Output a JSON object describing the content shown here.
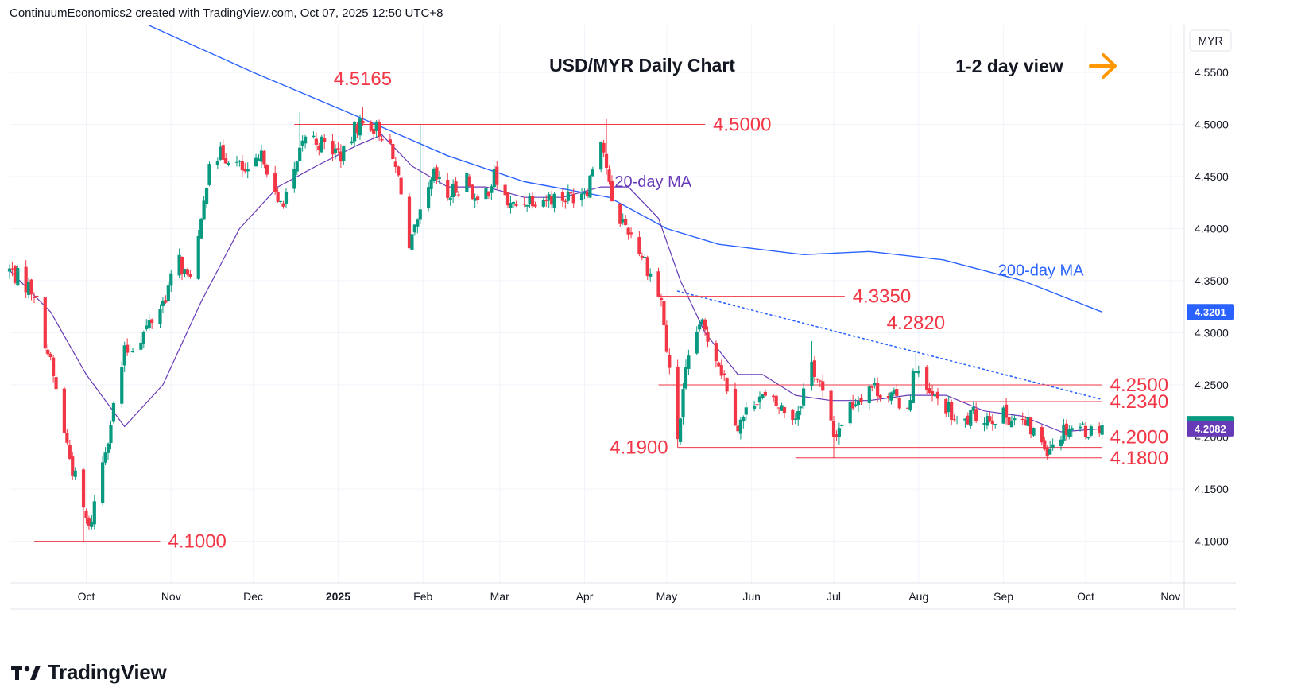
{
  "header": {
    "attribution": "ContinuumEconomics2 created with TradingView.com, Oct 07, 2025 12:50 UTC+8"
  },
  "brand": {
    "logo_text": "TradingView"
  },
  "colors": {
    "candle_up": "#089981",
    "candle_down": "#f23645",
    "ma20": "#673ab7",
    "ma200": "#2962ff",
    "level_line": "#f23645",
    "trendline": "#2962ff",
    "arrow": "#ff9800",
    "price_tag_blue": "#2962ff",
    "price_tag_purple": "#673ab7"
  },
  "chart_data": {
    "type": "candlestick",
    "title": "USD/MYR Daily Chart",
    "view_label": "1-2 day view",
    "currency": "MYR",
    "ylim": [
      4.06,
      4.595
    ],
    "y_ticks": [
      "4.5500",
      "4.5000",
      "4.4500",
      "4.4000",
      "4.3500",
      "4.3000",
      "4.2500",
      "4.2000",
      "4.1500",
      "4.1000"
    ],
    "x_ticks": [
      {
        "label": "Oct",
        "date": "2024-10-01"
      },
      {
        "label": "Nov",
        "date": "2024-11-01"
      },
      {
        "label": "Dec",
        "date": "2024-12-01"
      },
      {
        "label": "2025",
        "date": "2025-01-01",
        "bold": true
      },
      {
        "label": "Feb",
        "date": "2025-02-01"
      },
      {
        "label": "Mar",
        "date": "2025-03-01"
      },
      {
        "label": "Apr",
        "date": "2025-04-01"
      },
      {
        "label": "May",
        "date": "2025-05-01"
      },
      {
        "label": "Jun",
        "date": "2025-06-01"
      },
      {
        "label": "Jul",
        "date": "2025-07-01"
      },
      {
        "label": "Aug",
        "date": "2025-08-01"
      },
      {
        "label": "Sep",
        "date": "2025-09-01"
      },
      {
        "label": "Oct",
        "date": "2025-10-01"
      },
      {
        "label": "Nov",
        "date": "2025-11-01"
      }
    ],
    "date_range": [
      "2024-09-03",
      "2025-11-06"
    ],
    "price_points": [
      [
        "2024-09-03",
        4.36
      ],
      [
        "2024-09-12",
        4.34
      ],
      [
        "2024-09-18",
        4.27
      ],
      [
        "2024-09-25",
        4.18
      ],
      [
        "2024-09-30",
        4.13
      ],
      [
        "2024-10-02",
        4.11
      ],
      [
        "2024-10-08",
        4.19
      ],
      [
        "2024-10-15",
        4.28
      ],
      [
        "2024-10-22",
        4.3
      ],
      [
        "2024-10-29",
        4.33
      ],
      [
        "2024-11-04",
        4.37
      ],
      [
        "2024-11-07",
        4.35
      ],
      [
        "2024-11-12",
        4.4
      ],
      [
        "2024-11-15",
        4.47
      ],
      [
        "2024-11-22",
        4.47
      ],
      [
        "2024-11-29",
        4.45
      ],
      [
        "2024-12-05",
        4.47
      ],
      [
        "2024-12-10",
        4.42
      ],
      [
        "2024-12-16",
        4.45
      ],
      [
        "2024-12-20",
        4.49
      ],
      [
        "2024-12-27",
        4.48
      ],
      [
        "2025-01-03",
        4.47
      ],
      [
        "2025-01-08",
        4.5
      ],
      [
        "2025-01-13",
        4.5
      ],
      [
        "2025-01-18",
        4.49
      ],
      [
        "2025-01-24",
        4.44
      ],
      [
        "2025-01-27",
        4.38
      ],
      [
        "2025-01-31",
        4.41
      ],
      [
        "2025-02-05",
        4.45
      ],
      [
        "2025-02-10",
        4.43
      ],
      [
        "2025-02-17",
        4.45
      ],
      [
        "2025-02-21",
        4.42
      ],
      [
        "2025-02-27",
        4.45
      ],
      [
        "2025-03-05",
        4.42
      ],
      [
        "2025-03-12",
        4.43
      ],
      [
        "2025-03-19",
        4.43
      ],
      [
        "2025-03-26",
        4.43
      ],
      [
        "2025-04-02",
        4.44
      ],
      [
        "2025-04-07",
        4.49
      ],
      [
        "2025-04-09",
        4.46
      ],
      [
        "2025-04-11",
        4.42
      ],
      [
        "2025-04-17",
        4.4
      ],
      [
        "2025-04-23",
        4.37
      ],
      [
        "2025-04-29",
        4.33
      ],
      [
        "2025-05-02",
        4.26
      ],
      [
        "2025-05-05",
        4.2
      ],
      [
        "2025-05-08",
        4.26
      ],
      [
        "2025-05-13",
        4.31
      ],
      [
        "2025-05-19",
        4.28
      ],
      [
        "2025-05-23",
        4.25
      ],
      [
        "2025-05-27",
        4.21
      ],
      [
        "2025-06-03",
        4.24
      ],
      [
        "2025-06-10",
        4.23
      ],
      [
        "2025-06-17",
        4.22
      ],
      [
        "2025-06-23",
        4.27
      ],
      [
        "2025-06-26",
        4.25
      ],
      [
        "2025-07-01",
        4.2
      ],
      [
        "2025-07-07",
        4.23
      ],
      [
        "2025-07-14",
        4.25
      ],
      [
        "2025-07-21",
        4.24
      ],
      [
        "2025-07-28",
        4.23
      ],
      [
        "2025-07-31",
        4.27
      ],
      [
        "2025-08-04",
        4.24
      ],
      [
        "2025-08-11",
        4.23
      ],
      [
        "2025-08-15",
        4.21
      ],
      [
        "2025-08-21",
        4.22
      ],
      [
        "2025-08-27",
        4.22
      ],
      [
        "2025-09-03",
        4.22
      ],
      [
        "2025-09-10",
        4.21
      ],
      [
        "2025-09-17",
        4.19
      ],
      [
        "2025-09-24",
        4.21
      ],
      [
        "2025-09-29",
        4.21
      ],
      [
        "2025-10-03",
        4.205
      ],
      [
        "2025-10-07",
        4.2125
      ]
    ],
    "extremes": [
      {
        "date": "2024-09-30",
        "low": 4.1
      },
      {
        "date": "2024-12-18",
        "high": 4.512
      },
      {
        "date": "2025-01-10",
        "high": 4.5165
      },
      {
        "date": "2025-01-31",
        "high": 4.5
      },
      {
        "date": "2025-04-09",
        "high": 4.505
      },
      {
        "date": "2025-05-05",
        "low": 4.19
      },
      {
        "date": "2025-06-23",
        "high": 4.292
      },
      {
        "date": "2025-07-01",
        "low": 4.18
      },
      {
        "date": "2025-07-31",
        "high": 4.282
      },
      {
        "date": "2025-09-18",
        "low": 4.186
      }
    ],
    "ma20_points": [
      [
        "2024-09-03",
        4.36
      ],
      [
        "2024-09-18",
        4.32
      ],
      [
        "2024-10-01",
        4.26
      ],
      [
        "2024-10-15",
        4.21
      ],
      [
        "2024-10-29",
        4.25
      ],
      [
        "2024-11-12",
        4.33
      ],
      [
        "2024-11-26",
        4.4
      ],
      [
        "2024-12-10",
        4.44
      ],
      [
        "2024-12-24",
        4.46
      ],
      [
        "2025-01-08",
        4.48
      ],
      [
        "2025-01-17",
        4.49
      ],
      [
        "2025-01-28",
        4.46
      ],
      [
        "2025-02-10",
        4.44
      ],
      [
        "2025-02-24",
        4.44
      ],
      [
        "2025-03-10",
        4.43
      ],
      [
        "2025-03-24",
        4.43
      ],
      [
        "2025-04-07",
        4.44
      ],
      [
        "2025-04-17",
        4.44
      ],
      [
        "2025-04-28",
        4.41
      ],
      [
        "2025-05-06",
        4.35
      ],
      [
        "2025-05-15",
        4.3
      ],
      [
        "2025-05-27",
        4.26
      ],
      [
        "2025-06-05",
        4.26
      ],
      [
        "2025-06-17",
        4.24
      ],
      [
        "2025-06-30",
        4.235
      ],
      [
        "2025-07-14",
        4.235
      ],
      [
        "2025-07-28",
        4.24
      ],
      [
        "2025-08-11",
        4.24
      ],
      [
        "2025-08-25",
        4.225
      ],
      [
        "2025-09-08",
        4.22
      ],
      [
        "2025-09-22",
        4.205
      ],
      [
        "2025-10-07",
        4.208
      ]
    ],
    "ma200_points": [
      [
        "2024-10-24",
        4.595
      ],
      [
        "2024-12-01",
        4.55
      ],
      [
        "2025-01-06",
        4.51
      ],
      [
        "2025-02-10",
        4.47
      ],
      [
        "2025-03-10",
        4.445
      ],
      [
        "2025-04-10",
        4.43
      ],
      [
        "2025-05-01",
        4.4
      ],
      [
        "2025-05-20",
        4.385
      ],
      [
        "2025-06-20",
        4.375
      ],
      [
        "2025-07-14",
        4.378
      ],
      [
        "2025-08-10",
        4.37
      ],
      [
        "2025-09-08",
        4.35
      ],
      [
        "2025-10-07",
        4.32
      ]
    ],
    "levels": [
      {
        "label": "4.5165",
        "value": 4.5165,
        "date": "2025-01-10",
        "line": false
      },
      {
        "label": "4.5000",
        "value": 4.5,
        "from": "2024-12-16",
        "to": "2025-05-15",
        "label_side": "right"
      },
      {
        "label": "4.3350",
        "value": 4.335,
        "from": "2025-04-28",
        "to": "2025-07-05",
        "label_side": "right"
      },
      {
        "label": "4.2820",
        "value": 4.282,
        "date": "2025-07-31",
        "line": false
      },
      {
        "label": "4.2500",
        "value": 4.25,
        "from": "2025-04-28",
        "to": "2025-10-07",
        "label_side": "right"
      },
      {
        "label": "4.2340",
        "value": 4.234,
        "from": "2025-08-16",
        "to": "2025-10-07",
        "label_side": "right"
      },
      {
        "label": "4.2000",
        "value": 4.2,
        "from": "2025-05-18",
        "to": "2025-10-07",
        "label_side": "right"
      },
      {
        "label": "4.1900",
        "value": 4.19,
        "from": "2025-05-05",
        "to": "2025-10-07",
        "label_side": "left"
      },
      {
        "label": "4.1800",
        "value": 4.18,
        "from": "2025-06-17",
        "to": "2025-10-07",
        "label_side": "right"
      },
      {
        "label": "4.1000",
        "value": 4.1,
        "from": "2024-09-12",
        "to": "2024-10-28",
        "label_side": "right"
      }
    ],
    "trendline": {
      "from": [
        "2025-05-05",
        4.34
      ],
      "to": [
        "2025-10-07",
        4.236
      ],
      "style": "dotted"
    },
    "price_tags": [
      {
        "label": "4.3201",
        "value": 4.3201,
        "color": "#2962ff"
      },
      {
        "label": "4.2125",
        "value": 4.2125,
        "color": "#089981"
      },
      {
        "label": "4.2082",
        "value": 4.2082,
        "color": "#673ab7"
      }
    ],
    "series_labels": [
      {
        "text": "20-day MA",
        "date": "2025-04-12",
        "value": 4.44,
        "color": "#673ab7"
      },
      {
        "text": "200-day MA",
        "date": "2025-08-30",
        "value": 4.355,
        "color": "#2962ff"
      }
    ]
  }
}
